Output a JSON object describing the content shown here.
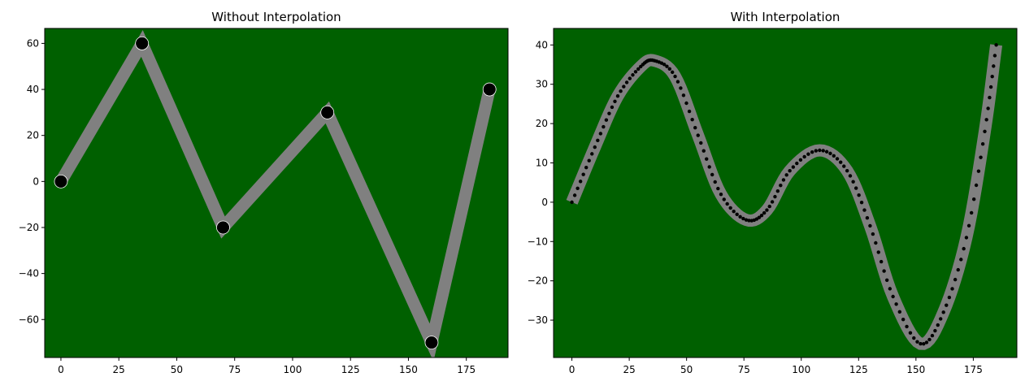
{
  "chart_data": [
    {
      "type": "line",
      "title": "Without Interpolation",
      "xlabel": "",
      "ylabel": "",
      "xlim": [
        -7,
        193
      ],
      "ylim": [
        -76.5,
        66.5
      ],
      "xticks": [
        0,
        25,
        50,
        75,
        100,
        125,
        150,
        175
      ],
      "yticks": [
        -60,
        -40,
        -20,
        0,
        20,
        40,
        60
      ],
      "background": "#006000",
      "line_color": "#808080",
      "marker_color": "#000000",
      "grid": false,
      "series": [
        {
          "x": [
            0,
            35,
            70,
            115,
            160,
            185
          ],
          "y": [
            0,
            60,
            -20,
            30,
            -70,
            40
          ]
        }
      ]
    },
    {
      "type": "line",
      "title": "With Interpolation",
      "xlabel": "",
      "ylabel": "",
      "xlim": [
        -8,
        194
      ],
      "ylim": [
        -39.5,
        44.2
      ],
      "xticks": [
        0,
        25,
        50,
        75,
        100,
        125,
        150,
        175
      ],
      "yticks": [
        -30,
        -20,
        -10,
        0,
        10,
        20,
        30,
        40
      ],
      "background": "#006000",
      "line_color": "#808080",
      "marker_color": "#000000",
      "grid": false,
      "series": [
        {
          "x": [
            0,
            10,
            20,
            30,
            36,
            45,
            55,
            65,
            76,
            85,
            95,
            108,
            120,
            130,
            140,
            152,
            162,
            172,
            180,
            185
          ],
          "y": [
            0,
            14,
            27,
            34.5,
            36,
            32,
            17,
            2,
            -4.5,
            -2,
            8,
            13.2,
            8,
            -6,
            -24,
            -36,
            -28,
            -9,
            18,
            40
          ]
        }
      ]
    }
  ]
}
